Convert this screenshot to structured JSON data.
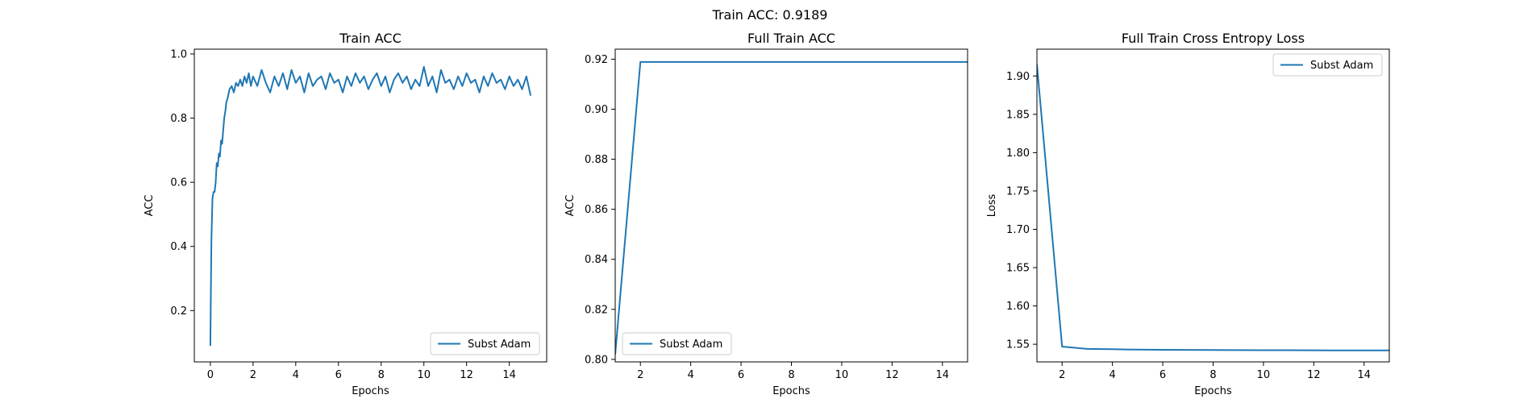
{
  "figure": {
    "suptitle": "Train ACC: 0.9189"
  },
  "colors": {
    "series": "#1f77b4",
    "axes": "#000000"
  },
  "chart_data": [
    {
      "type": "line",
      "title": "Train ACC",
      "xlabel": "Epochs",
      "ylabel": "ACC",
      "xlim": [
        -0.75,
        15.75
      ],
      "ylim": [
        0.04,
        1.015
      ],
      "xticks": [
        0,
        2,
        4,
        6,
        8,
        10,
        12,
        14
      ],
      "yticks": [
        0.2,
        0.4,
        0.6,
        0.8,
        1.0
      ],
      "ytick_labels": [
        "0.2",
        "0.4",
        "0.6",
        "0.8",
        "1.0"
      ],
      "legend": "lower right",
      "series": [
        {
          "name": "Subst Adam",
          "x": [
            0,
            0.05,
            0.1,
            0.15,
            0.2,
            0.25,
            0.3,
            0.35,
            0.4,
            0.45,
            0.5,
            0.55,
            0.6,
            0.65,
            0.7,
            0.75,
            0.8,
            0.9,
            1.0,
            1.1,
            1.2,
            1.3,
            1.4,
            1.5,
            1.6,
            1.7,
            1.8,
            1.9,
            2.0,
            2.2,
            2.4,
            2.6,
            2.8,
            3.0,
            3.2,
            3.4,
            3.6,
            3.8,
            4.0,
            4.2,
            4.4,
            4.6,
            4.8,
            5.0,
            5.2,
            5.4,
            5.6,
            5.8,
            6.0,
            6.2,
            6.4,
            6.6,
            6.8,
            7.0,
            7.2,
            7.4,
            7.6,
            7.8,
            8.0,
            8.2,
            8.4,
            8.6,
            8.8,
            9.0,
            9.2,
            9.4,
            9.6,
            9.8,
            10.0,
            10.2,
            10.4,
            10.6,
            10.8,
            11.0,
            11.2,
            11.4,
            11.6,
            11.8,
            12.0,
            12.2,
            12.4,
            12.6,
            12.8,
            13.0,
            13.2,
            13.4,
            13.6,
            13.8,
            14.0,
            14.2,
            14.4,
            14.6,
            14.8,
            15.0
          ],
          "y": [
            0.09,
            0.42,
            0.55,
            0.57,
            0.57,
            0.6,
            0.66,
            0.65,
            0.69,
            0.68,
            0.73,
            0.72,
            0.76,
            0.8,
            0.82,
            0.85,
            0.86,
            0.89,
            0.9,
            0.88,
            0.91,
            0.9,
            0.92,
            0.9,
            0.93,
            0.91,
            0.94,
            0.9,
            0.93,
            0.9,
            0.95,
            0.91,
            0.88,
            0.93,
            0.9,
            0.94,
            0.89,
            0.95,
            0.91,
            0.93,
            0.88,
            0.94,
            0.9,
            0.92,
            0.93,
            0.89,
            0.94,
            0.91,
            0.92,
            0.88,
            0.93,
            0.9,
            0.94,
            0.91,
            0.93,
            0.89,
            0.92,
            0.94,
            0.9,
            0.93,
            0.88,
            0.92,
            0.94,
            0.91,
            0.93,
            0.89,
            0.92,
            0.9,
            0.96,
            0.9,
            0.93,
            0.88,
            0.95,
            0.91,
            0.92,
            0.89,
            0.93,
            0.9,
            0.94,
            0.91,
            0.92,
            0.88,
            0.93,
            0.9,
            0.94,
            0.91,
            0.92,
            0.89,
            0.93,
            0.9,
            0.92,
            0.89,
            0.93,
            0.87
          ]
        }
      ]
    },
    {
      "type": "line",
      "title": "Full Train ACC",
      "xlabel": "Epochs",
      "ylabel": "ACC",
      "xlim": [
        1,
        15
      ],
      "ylim": [
        0.799,
        0.924
      ],
      "xticks": [
        2,
        4,
        6,
        8,
        10,
        12,
        14
      ],
      "yticks": [
        0.8,
        0.82,
        0.84,
        0.86,
        0.88,
        0.9,
        0.92
      ],
      "ytick_labels": [
        "0.80",
        "0.82",
        "0.84",
        "0.86",
        "0.88",
        "0.90",
        "0.92"
      ],
      "legend": "lower left",
      "series": [
        {
          "name": "Subst Adam",
          "x": [
            1,
            2,
            3,
            4,
            5,
            6,
            7,
            8,
            9,
            10,
            11,
            12,
            13,
            14,
            15
          ],
          "y": [
            0.802,
            0.9189,
            0.9189,
            0.9189,
            0.9189,
            0.9189,
            0.9189,
            0.9189,
            0.9189,
            0.9189,
            0.9189,
            0.9189,
            0.9189,
            0.9189,
            0.9189
          ]
        }
      ]
    },
    {
      "type": "line",
      "title": "Full Train Cross Entropy Loss",
      "xlabel": "Epochs",
      "ylabel": "Loss",
      "xlim": [
        1,
        15
      ],
      "ylim": [
        1.527,
        1.935
      ],
      "xticks": [
        2,
        4,
        6,
        8,
        10,
        12,
        14
      ],
      "yticks": [
        1.55,
        1.6,
        1.65,
        1.7,
        1.75,
        1.8,
        1.85,
        1.9
      ],
      "ytick_labels": [
        "1.55",
        "1.60",
        "1.65",
        "1.70",
        "1.75",
        "1.80",
        "1.85",
        "1.90"
      ],
      "legend": "upper right",
      "series": [
        {
          "name": "Subst Adam",
          "x": [
            1,
            2,
            3,
            4,
            5,
            6,
            7,
            8,
            9,
            10,
            11,
            12,
            13,
            14,
            15
          ],
          "y": [
            1.915,
            1.547,
            1.544,
            1.5435,
            1.543,
            1.5428,
            1.5426,
            1.5425,
            1.5424,
            1.5423,
            1.5422,
            1.5421,
            1.542,
            1.542,
            1.542
          ]
        }
      ]
    }
  ]
}
